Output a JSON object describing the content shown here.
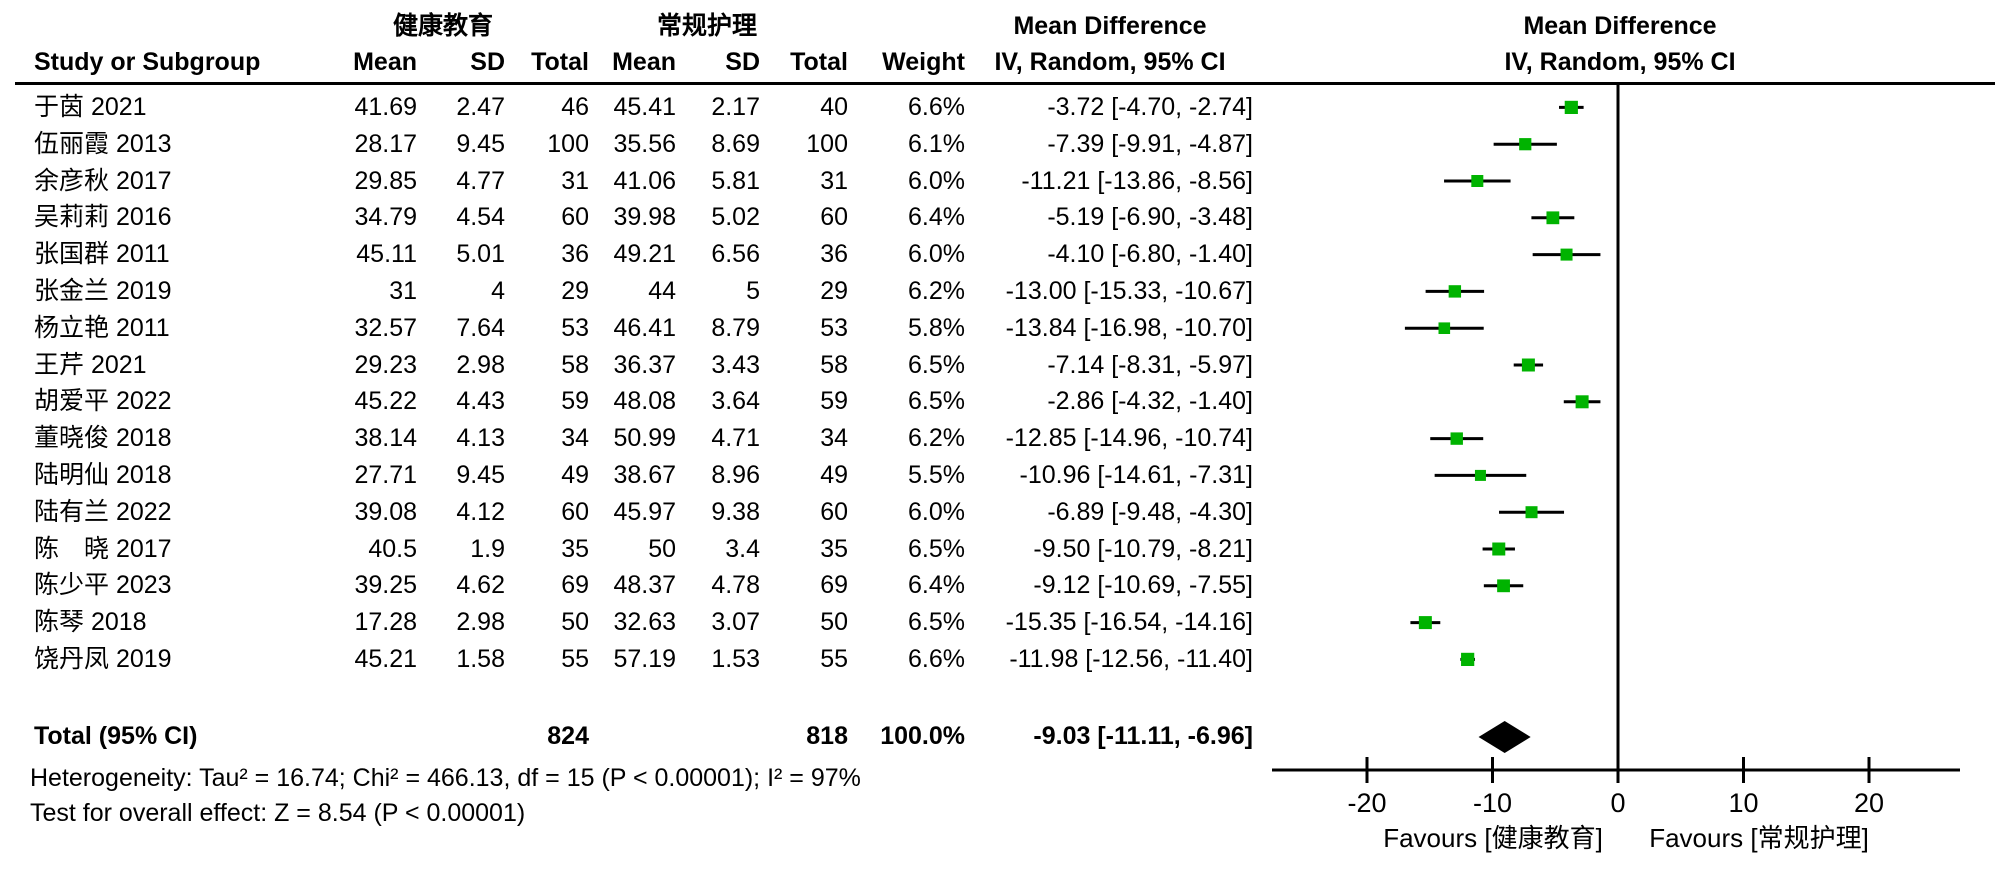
{
  "header": {
    "group1": "健康教育",
    "group2": "常规护理",
    "md_header_left": "Mean Difference",
    "md_header_right": "Mean Difference",
    "col_study": "Study or Subgroup",
    "col_mean1": "Mean",
    "col_sd1": "SD",
    "col_total1": "Total",
    "col_mean2": "Mean",
    "col_sd2": "SD",
    "col_total2": "Total",
    "col_weight": "Weight",
    "ci_header_left": "IV, Random, 95% CI",
    "ci_header_right": "IV, Random, 95% CI"
  },
  "footer": {
    "heterogeneity": "Heterogeneity: Tau² = 16.74; Chi² = 466.13, df = 15 (P < 0.00001); I² = 97%",
    "overall_effect": "Test for overall effect: Z = 8.54 (P < 0.00001)"
  },
  "chart_data": {
    "type": "forest",
    "effect_measure": "Mean Difference, IV, Random, 95% CI",
    "marker_color": "#00b300",
    "line_color": "#000000",
    "axis": {
      "ticks": [
        -20,
        -10,
        0,
        10,
        20
      ],
      "xlim": [
        -27.5,
        27.2
      ],
      "favours_left": "Favours [健康教育]",
      "favours_right": "Favours [常规护理]"
    },
    "studies": [
      {
        "name": "于茵 2021",
        "mean1": "41.69",
        "sd1": "2.47",
        "n1": "46",
        "mean2": "45.41",
        "sd2": "2.17",
        "n2": "40",
        "weight": "6.6%",
        "weight_num": 6.6,
        "ci_text": "-3.72 [-4.70, -2.74]",
        "md": -3.72,
        "lo": -4.7,
        "hi": -2.74
      },
      {
        "name": "伍丽霞 2013",
        "mean1": "28.17",
        "sd1": "9.45",
        "n1": "100",
        "mean2": "35.56",
        "sd2": "8.69",
        "n2": "100",
        "weight": "6.1%",
        "weight_num": 6.1,
        "ci_text": "-7.39 [-9.91, -4.87]",
        "md": -7.39,
        "lo": -9.91,
        "hi": -4.87
      },
      {
        "name": "余彦秋 2017",
        "mean1": "29.85",
        "sd1": "4.77",
        "n1": "31",
        "mean2": "41.06",
        "sd2": "5.81",
        "n2": "31",
        "weight": "6.0%",
        "weight_num": 6.0,
        "ci_text": "-11.21 [-13.86, -8.56]",
        "md": -11.21,
        "lo": -13.86,
        "hi": -8.56
      },
      {
        "name": "吴莉莉 2016",
        "mean1": "34.79",
        "sd1": "4.54",
        "n1": "60",
        "mean2": "39.98",
        "sd2": "5.02",
        "n2": "60",
        "weight": "6.4%",
        "weight_num": 6.4,
        "ci_text": "-5.19 [-6.90, -3.48]",
        "md": -5.19,
        "lo": -6.9,
        "hi": -3.48
      },
      {
        "name": "张国群 2011",
        "mean1": "45.11",
        "sd1": "5.01",
        "n1": "36",
        "mean2": "49.21",
        "sd2": "6.56",
        "n2": "36",
        "weight": "6.0%",
        "weight_num": 6.0,
        "ci_text": "-4.10 [-6.80, -1.40]",
        "md": -4.1,
        "lo": -6.8,
        "hi": -1.4
      },
      {
        "name": "张金兰 2019",
        "mean1": "31",
        "sd1": "4",
        "n1": "29",
        "mean2": "44",
        "sd2": "5",
        "n2": "29",
        "weight": "6.2%",
        "weight_num": 6.2,
        "ci_text": "-13.00 [-15.33, -10.67]",
        "md": -13.0,
        "lo": -15.33,
        "hi": -10.67
      },
      {
        "name": "杨立艳 2011",
        "mean1": "32.57",
        "sd1": "7.64",
        "n1": "53",
        "mean2": "46.41",
        "sd2": "8.79",
        "n2": "53",
        "weight": "5.8%",
        "weight_num": 5.8,
        "ci_text": "-13.84 [-16.98, -10.70]",
        "md": -13.84,
        "lo": -16.98,
        "hi": -10.7
      },
      {
        "name": "王芹 2021",
        "mean1": "29.23",
        "sd1": "2.98",
        "n1": "58",
        "mean2": "36.37",
        "sd2": "3.43",
        "n2": "58",
        "weight": "6.5%",
        "weight_num": 6.5,
        "ci_text": "-7.14 [-8.31, -5.97]",
        "md": -7.14,
        "lo": -8.31,
        "hi": -5.97
      },
      {
        "name": "胡爱平 2022",
        "mean1": "45.22",
        "sd1": "4.43",
        "n1": "59",
        "mean2": "48.08",
        "sd2": "3.64",
        "n2": "59",
        "weight": "6.5%",
        "weight_num": 6.5,
        "ci_text": "-2.86 [-4.32, -1.40]",
        "md": -2.86,
        "lo": -4.32,
        "hi": -1.4
      },
      {
        "name": "董晓俊 2018",
        "mean1": "38.14",
        "sd1": "4.13",
        "n1": "34",
        "mean2": "50.99",
        "sd2": "4.71",
        "n2": "34",
        "weight": "6.2%",
        "weight_num": 6.2,
        "ci_text": "-12.85 [-14.96, -10.74]",
        "md": -12.85,
        "lo": -14.96,
        "hi": -10.74
      },
      {
        "name": "陆明仙 2018",
        "mean1": "27.71",
        "sd1": "9.45",
        "n1": "49",
        "mean2": "38.67",
        "sd2": "8.96",
        "n2": "49",
        "weight": "5.5%",
        "weight_num": 5.5,
        "ci_text": "-10.96 [-14.61, -7.31]",
        "md": -10.96,
        "lo": -14.61,
        "hi": -7.31
      },
      {
        "name": "陆有兰 2022",
        "mean1": "39.08",
        "sd1": "4.12",
        "n1": "60",
        "mean2": "45.97",
        "sd2": "9.38",
        "n2": "60",
        "weight": "6.0%",
        "weight_num": 6.0,
        "ci_text": "-6.89 [-9.48, -4.30]",
        "md": -6.89,
        "lo": -9.48,
        "hi": -4.3
      },
      {
        "name": "陈　晓 2017",
        "mean1": "40.5",
        "sd1": "1.9",
        "n1": "35",
        "mean2": "50",
        "sd2": "3.4",
        "n2": "35",
        "weight": "6.5%",
        "weight_num": 6.5,
        "ci_text": "-9.50 [-10.79, -8.21]",
        "md": -9.5,
        "lo": -10.79,
        "hi": -8.21
      },
      {
        "name": "陈少平 2023",
        "mean1": "39.25",
        "sd1": "4.62",
        "n1": "69",
        "mean2": "48.37",
        "sd2": "4.78",
        "n2": "69",
        "weight": "6.4%",
        "weight_num": 6.4,
        "ci_text": "-9.12 [-10.69, -7.55]",
        "md": -9.12,
        "lo": -10.69,
        "hi": -7.55
      },
      {
        "name": "陈琴 2018",
        "mean1": "17.28",
        "sd1": "2.98",
        "n1": "50",
        "mean2": "32.63",
        "sd2": "3.07",
        "n2": "50",
        "weight": "6.5%",
        "weight_num": 6.5,
        "ci_text": "-15.35 [-16.54, -14.16]",
        "md": -15.35,
        "lo": -16.54,
        "hi": -14.16
      },
      {
        "name": "饶丹凤 2019",
        "mean1": "45.21",
        "sd1": "1.58",
        "n1": "55",
        "mean2": "57.19",
        "sd2": "1.53",
        "n2": "55",
        "weight": "6.6%",
        "weight_num": 6.6,
        "ci_text": "-11.98 [-12.56, -11.40]",
        "md": -11.98,
        "lo": -12.56,
        "hi": -11.4
      }
    ],
    "total": {
      "label": "Total (95% CI)",
      "n1": "824",
      "n2": "818",
      "weight": "100.0%",
      "ci_text": "-9.03 [-11.11, -6.96]",
      "md": -9.03,
      "lo": -11.11,
      "hi": -6.96
    }
  }
}
